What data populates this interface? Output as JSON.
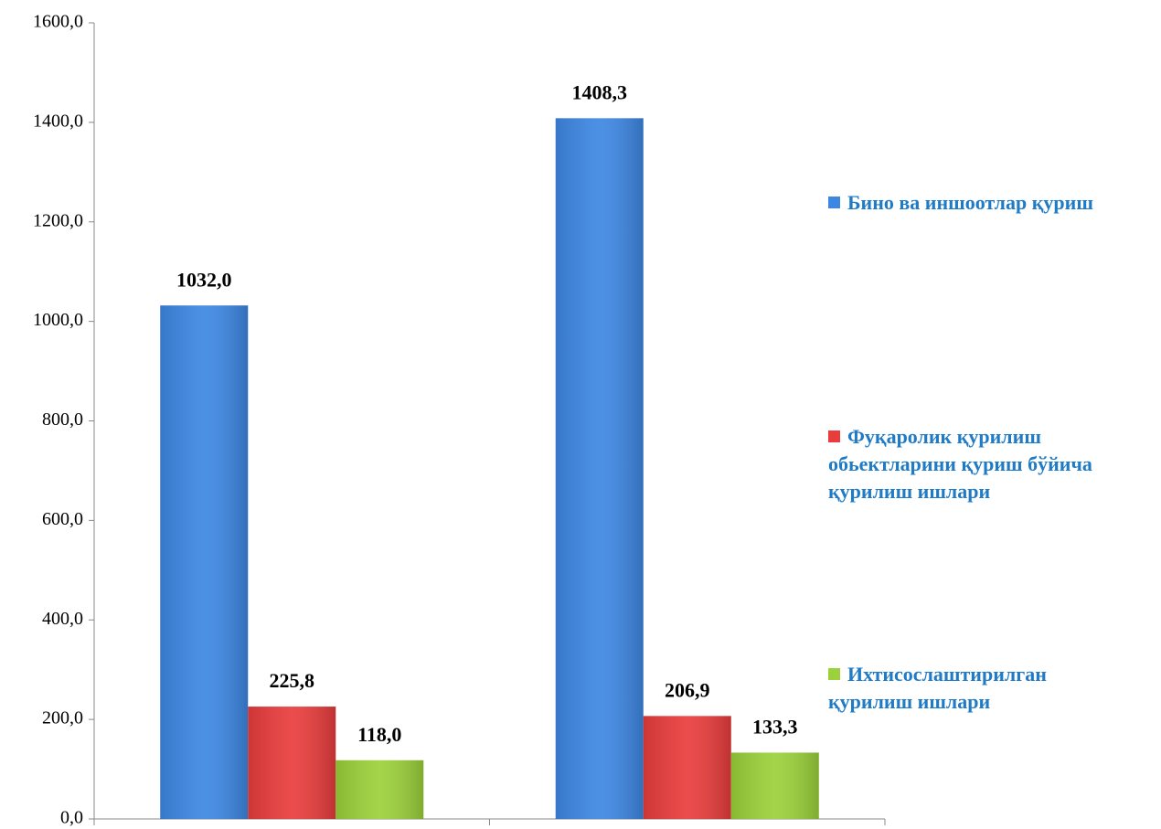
{
  "chart_data": {
    "type": "bar",
    "categories": [
      null,
      null
    ],
    "series": [
      {
        "name": "Бино ва иншоотлар қуриш",
        "color": "#3d87e3",
        "values": [
          1032.0,
          1408.3
        ],
        "value_labels": [
          "1032,0",
          "1408,3"
        ]
      },
      {
        "name": "Фуқаролик қурилиш обьектларини қуриш бўйича қурилиш ишлари",
        "color": "#e93c3c",
        "values": [
          225.8,
          206.9
        ],
        "value_labels": [
          "225,8",
          "206,9"
        ]
      },
      {
        "name": "Ихтисослаштирилган қурилиш ишлари",
        "color": "#9bd13a",
        "values": [
          118.0,
          133.3
        ],
        "value_labels": [
          "118,0",
          "133,3"
        ]
      }
    ],
    "ylim": [
      0,
      1600
    ],
    "yticks": [
      {
        "value": 0,
        "label": "0,0"
      },
      {
        "value": 200,
        "label": "200,0"
      },
      {
        "value": 400,
        "label": "400,0"
      },
      {
        "value": 600,
        "label": "600,0"
      },
      {
        "value": 800,
        "label": "800,0"
      },
      {
        "value": 1000,
        "label": "1000,0"
      },
      {
        "value": 1200,
        "label": "1200,0"
      },
      {
        "value": 1400,
        "label": "1400,0"
      },
      {
        "value": 1600,
        "label": "1600,0"
      }
    ],
    "legend": "right"
  }
}
